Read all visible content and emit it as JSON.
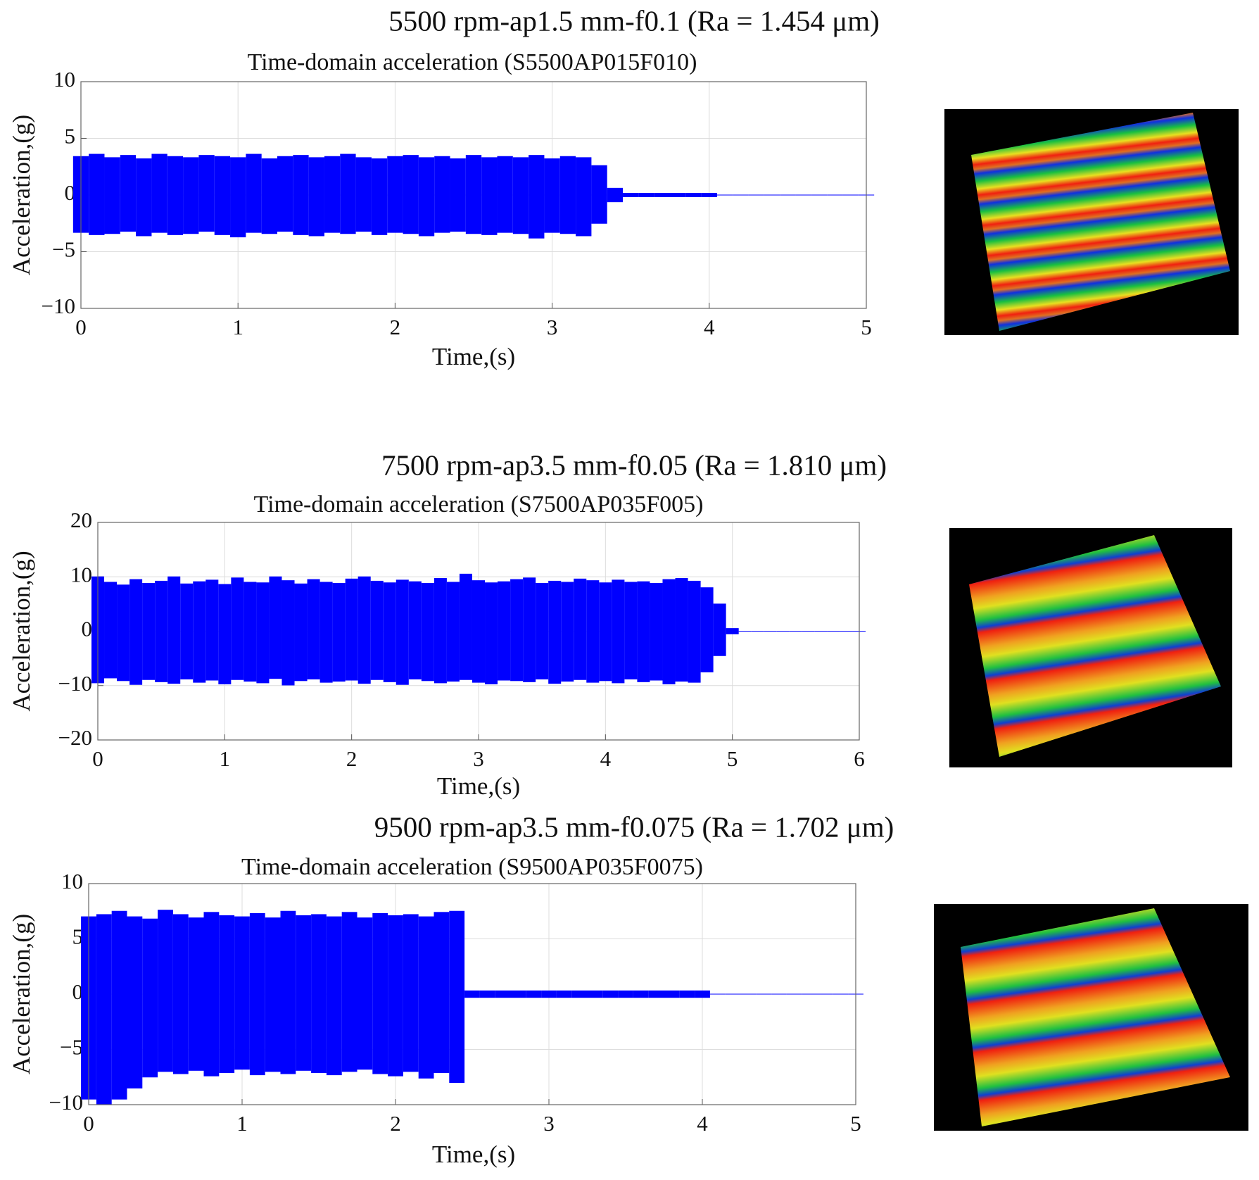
{
  "chart_data": [
    {
      "type": "envelope",
      "title": "5500 rpm-ap1.5 mm-f0.1 (Ra = 1.454 μm)",
      "subtitle": "Time-domain acceleration (S5500AP015F010)",
      "xlabel": "Time,(s)",
      "ylabel": "Acceleration,(g)",
      "color": "#0000ff",
      "grid": true,
      "xlim": [
        0,
        5
      ],
      "xticks": [
        0,
        1,
        2,
        3,
        4,
        5
      ],
      "ylim": [
        -10,
        10
      ],
      "yticks": [
        {
          "value": -10,
          "label": "−10"
        },
        {
          "value": -5,
          "label": "−5"
        },
        0,
        5,
        10
      ],
      "x": [
        0,
        0.1,
        0.2,
        0.3,
        0.4,
        0.5,
        0.6,
        0.7,
        0.8,
        0.9,
        1,
        1.1,
        1.2,
        1.3,
        1.4,
        1.5,
        1.6,
        1.7,
        1.8,
        1.9,
        2,
        2.1,
        2.2,
        2.3,
        2.4,
        2.5,
        2.6,
        2.7,
        2.8,
        2.9,
        3,
        3.1,
        3.2,
        3.3,
        3.4,
        3.5,
        3.6,
        3.7,
        3.8,
        3.9,
        4,
        4.1,
        4.2,
        4.3,
        4.4,
        4.5,
        4.6,
        4.7,
        4.8,
        4.9,
        5
      ],
      "envelope_max": [
        3.4,
        3.6,
        3.3,
        3.5,
        3.2,
        3.6,
        3.4,
        3.3,
        3.5,
        3.4,
        3.3,
        3.6,
        3.2,
        3.4,
        3.5,
        3.3,
        3.4,
        3.6,
        3.3,
        3.2,
        3.4,
        3.5,
        3.3,
        3.4,
        3.2,
        3.5,
        3.3,
        3.4,
        3.3,
        3.5,
        3.2,
        3.4,
        3.3,
        2.6,
        0.6,
        0.15,
        0.15,
        0.15,
        0.15,
        0.15,
        0.15,
        0,
        0,
        0,
        0,
        0,
        0,
        0,
        0,
        0,
        0
      ],
      "envelope_min": [
        -3.3,
        -3.5,
        -3.4,
        -3.2,
        -3.6,
        -3.3,
        -3.5,
        -3.4,
        -3.2,
        -3.5,
        -3.7,
        -3.3,
        -3.4,
        -3.2,
        -3.5,
        -3.6,
        -3.3,
        -3.4,
        -3.2,
        -3.5,
        -3.3,
        -3.4,
        -3.6,
        -3.3,
        -3.2,
        -3.4,
        -3.5,
        -3.3,
        -3.4,
        -3.8,
        -3.3,
        -3.4,
        -3.6,
        -2.5,
        -0.6,
        -0.15,
        -0.15,
        -0.15,
        -0.15,
        -0.15,
        -0.15,
        0,
        0,
        0,
        0,
        0,
        0,
        0,
        0,
        0,
        0
      ]
    },
    {
      "type": "envelope",
      "title": "7500 rpm-ap3.5 mm-f0.05 (Ra = 1.810 μm)",
      "subtitle": "Time-domain acceleration (S7500AP035F005)",
      "xlabel": "Time,(s)",
      "ylabel": "Acceleration,(g)",
      "color": "#0000ff",
      "grid": true,
      "xlim": [
        0,
        6
      ],
      "xticks": [
        0,
        1,
        2,
        3,
        4,
        5,
        6
      ],
      "ylim": [
        -20,
        20
      ],
      "yticks": [
        {
          "value": -20,
          "label": "−20"
        },
        {
          "value": -10,
          "label": "−10"
        },
        0,
        10,
        20
      ],
      "x": [
        0,
        0.1,
        0.2,
        0.3,
        0.4,
        0.5,
        0.6,
        0.7,
        0.8,
        0.9,
        1,
        1.1,
        1.2,
        1.3,
        1.4,
        1.5,
        1.6,
        1.7,
        1.8,
        1.9,
        2,
        2.1,
        2.2,
        2.3,
        2.4,
        2.5,
        2.6,
        2.7,
        2.8,
        2.9,
        3,
        3.1,
        3.2,
        3.3,
        3.4,
        3.5,
        3.6,
        3.7,
        3.8,
        3.9,
        4,
        4.1,
        4.2,
        4.3,
        4.4,
        4.5,
        4.6,
        4.7,
        4.8,
        4.9,
        5,
        5.1,
        5.2,
        5.3,
        5.4,
        5.5,
        5.6,
        5.7,
        5.8,
        5.9,
        6
      ],
      "envelope_max": [
        10,
        9,
        8.5,
        9.5,
        8.8,
        9.2,
        10,
        8.7,
        9.1,
        9.4,
        8.6,
        9.8,
        9,
        8.9,
        10,
        9.3,
        8.7,
        9.5,
        9,
        8.8,
        9.6,
        10,
        9.2,
        8.9,
        9.4,
        9.1,
        8.8,
        9.7,
        9,
        10.5,
        9.3,
        8.9,
        9.1,
        9.5,
        9.8,
        8.8,
        9.2,
        9,
        9.6,
        9.3,
        8.9,
        9.4,
        9,
        9.1,
        8.8,
        9.5,
        9.7,
        9.2,
        8,
        5,
        0.5,
        0,
        0,
        0,
        0,
        0,
        0,
        0,
        0,
        0,
        0
      ],
      "envelope_min": [
        -9.5,
        -8.6,
        -9.1,
        -9.8,
        -8.9,
        -9.3,
        -9.6,
        -8.8,
        -9.4,
        -9,
        -9.7,
        -8.9,
        -9.2,
        -9.5,
        -8.7,
        -9.9,
        -9.1,
        -8.8,
        -9.4,
        -9.2,
        -9,
        -9.6,
        -8.9,
        -9.3,
        -9.8,
        -8.8,
        -9.1,
        -9.5,
        -9.2,
        -8.9,
        -9.4,
        -9.7,
        -9,
        -9.1,
        -9.3,
        -8.8,
        -9.6,
        -9.2,
        -8.9,
        -9.4,
        -9.1,
        -9.5,
        -8.8,
        -9.3,
        -9,
        -9.7,
        -9.2,
        -9.4,
        -7.5,
        -4.5,
        -0.5,
        0,
        0,
        0,
        0,
        0,
        0,
        0,
        0,
        0,
        0
      ]
    },
    {
      "type": "envelope",
      "title": "9500 rpm-ap3.5 mm-f0.075 (Ra = 1.702 μm)",
      "subtitle": "Time-domain acceleration (S9500AP035F0075)",
      "xlabel": "Time,(s)",
      "ylabel": "Acceleration,(g)",
      "color": "#0000ff",
      "grid": true,
      "xlim": [
        0,
        5
      ],
      "xticks": [
        0,
        1,
        2,
        3,
        4,
        5
      ],
      "ylim": [
        -10,
        10
      ],
      "yticks": [
        {
          "value": -10,
          "label": "−10"
        },
        {
          "value": -5,
          "label": "−5"
        },
        0,
        5,
        10
      ],
      "x": [
        0,
        0.1,
        0.2,
        0.3,
        0.4,
        0.5,
        0.6,
        0.7,
        0.8,
        0.9,
        1,
        1.1,
        1.2,
        1.3,
        1.4,
        1.5,
        1.6,
        1.7,
        1.8,
        1.9,
        2,
        2.1,
        2.2,
        2.3,
        2.4,
        2.5,
        2.6,
        2.7,
        2.8,
        2.9,
        3,
        3.1,
        3.2,
        3.3,
        3.4,
        3.5,
        3.6,
        3.7,
        3.8,
        3.9,
        4,
        4.1,
        4.2,
        4.3,
        4.4,
        4.5,
        4.6,
        4.7,
        4.8,
        4.9,
        5
      ],
      "envelope_max": [
        7,
        7.2,
        7.5,
        7,
        6.8,
        7.6,
        7.2,
        6.9,
        7.4,
        7.1,
        7,
        7.3,
        6.9,
        7.5,
        7.1,
        7.2,
        7,
        7.4,
        6.9,
        7.3,
        7.1,
        7.2,
        7,
        7.4,
        7.5,
        0.3,
        0.3,
        0.3,
        0.3,
        0.3,
        0.3,
        0.3,
        0.3,
        0.3,
        0.3,
        0.3,
        0.3,
        0.3,
        0.3,
        0.3,
        0.3,
        0,
        0,
        0,
        0,
        0,
        0,
        0,
        0,
        0,
        0
      ],
      "envelope_min": [
        -9.5,
        -10,
        -9.5,
        -8.5,
        -7.5,
        -7,
        -7.2,
        -6.9,
        -7.4,
        -7.1,
        -6.8,
        -7.3,
        -7,
        -7.2,
        -6.9,
        -7.1,
        -7.3,
        -7,
        -6.8,
        -7.2,
        -7.4,
        -7,
        -7.6,
        -7.1,
        -8,
        -0.3,
        -0.3,
        -0.3,
        -0.3,
        -0.3,
        -0.3,
        -0.3,
        -0.3,
        -0.3,
        -0.3,
        -0.3,
        -0.3,
        -0.3,
        -0.3,
        -0.3,
        -0.3,
        0,
        0,
        0,
        0,
        0,
        0,
        0,
        0,
        0,
        0
      ]
    }
  ]
}
